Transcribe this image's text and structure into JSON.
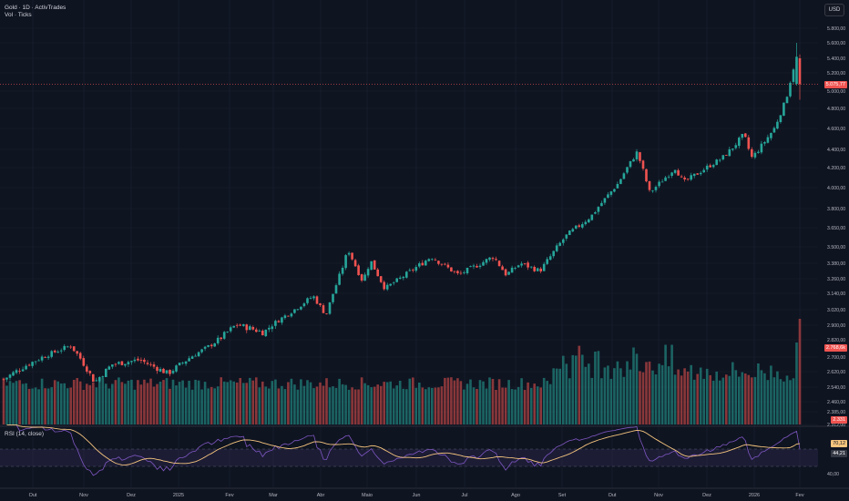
{
  "header": {
    "title": "Gold · 1D · ActivTrades",
    "volume_label": "Vol · Ticks",
    "currency": "USD"
  },
  "price_axis": {
    "labels": [
      "5.800,00",
      "5.600,00",
      "5.400,00",
      "5.200,00",
      "5.000,00",
      "4.800,00",
      "4.600,00",
      "4.400,00",
      "4.200,00",
      "4.000,00",
      "3.800,00",
      "3.650,00",
      "3.500,00",
      "3.380,00",
      "3.260,00",
      "3.140,00",
      "3.020,00",
      "2.900,00",
      "2.820,00",
      "2.700,00",
      "2.620,00",
      "2.540,00",
      "2.460,00",
      "2.385,00",
      "2.312,00"
    ],
    "last_price_tag": "5.075,77",
    "volume_tag": "2.768,6k",
    "extra_tag": "2.331"
  },
  "rsi_panel": {
    "label": "RSI (14, close)",
    "axis_label": "40,00",
    "rsi_tag": "70,12",
    "ma_tag": "44,21"
  },
  "time_axis": {
    "labels": [
      "Out",
      "Nov",
      "Dez",
      "2025",
      "Fev",
      "Mar",
      "Abr",
      "Maio",
      "Jun",
      "Jul",
      "Ago",
      "Set",
      "Out",
      "Nov",
      "Dez",
      "2026",
      "Fev"
    ]
  },
  "chart_data": {
    "type": "candlestick",
    "title": "Gold · 1D · ActivTrades",
    "ylabel": "USD",
    "series_price_anchors": [
      {
        "date": "2024-09-18",
        "close": 2580
      },
      {
        "date": "2024-10-01",
        "close": 2650
      },
      {
        "date": "2024-10-30",
        "close": 2780
      },
      {
        "date": "2024-11-14",
        "close": 2565
      },
      {
        "date": "2024-11-25",
        "close": 2660
      },
      {
        "date": "2024-12-12",
        "close": 2685
      },
      {
        "date": "2024-12-30",
        "close": 2610
      },
      {
        "date": "2025-01-24",
        "close": 2770
      },
      {
        "date": "2025-02-11",
        "close": 2905
      },
      {
        "date": "2025-02-28",
        "close": 2860
      },
      {
        "date": "2025-03-31",
        "close": 3120
      },
      {
        "date": "2025-04-08",
        "close": 2980
      },
      {
        "date": "2025-04-22",
        "close": 3480
      },
      {
        "date": "2025-05-01",
        "close": 3240
      },
      {
        "date": "2025-05-06",
        "close": 3400
      },
      {
        "date": "2025-05-15",
        "close": 3180
      },
      {
        "date": "2025-06-13",
        "close": 3430
      },
      {
        "date": "2025-06-30",
        "close": 3290
      },
      {
        "date": "2025-07-22",
        "close": 3430
      },
      {
        "date": "2025-07-30",
        "close": 3290
      },
      {
        "date": "2025-08-08",
        "close": 3380
      },
      {
        "date": "2025-08-20",
        "close": 3320
      },
      {
        "date": "2025-09-05",
        "close": 3580
      },
      {
        "date": "2025-09-22",
        "close": 3750
      },
      {
        "date": "2025-10-08",
        "close": 4040
      },
      {
        "date": "2025-10-20",
        "close": 4370
      },
      {
        "date": "2025-10-28",
        "close": 3950
      },
      {
        "date": "2025-11-13",
        "close": 4200
      },
      {
        "date": "2025-11-18",
        "close": 4050
      },
      {
        "date": "2025-12-12",
        "close": 4300
      },
      {
        "date": "2025-12-26",
        "close": 4540
      },
      {
        "date": "2025-12-31",
        "close": 4310
      },
      {
        "date": "2026-01-14",
        "close": 4600
      },
      {
        "date": "2026-01-21",
        "close": 4880
      },
      {
        "date": "2026-01-28",
        "close": 5420
      },
      {
        "date": "2026-01-30",
        "close": 5076
      }
    ],
    "last_price": 5075.77,
    "volume_last": "2.768,6k",
    "rsi_period": 14,
    "rsi_last": 70.12,
    "rsi_ma_last": 44.21,
    "xaxis_ticks": [
      "Out",
      "Nov",
      "Dez",
      "2025",
      "Fev",
      "Mar",
      "Abr",
      "Maio",
      "Jun",
      "Jul",
      "Ago",
      "Set",
      "Out",
      "Nov",
      "Dez",
      "2026",
      "Fev"
    ]
  },
  "colors": {
    "up": "#26a69a",
    "down": "#ef5350",
    "rsi_line": "#7e57c2",
    "rsi_ma": "#f5c57e",
    "background": "#0f1421",
    "grid": "#1c2030"
  }
}
